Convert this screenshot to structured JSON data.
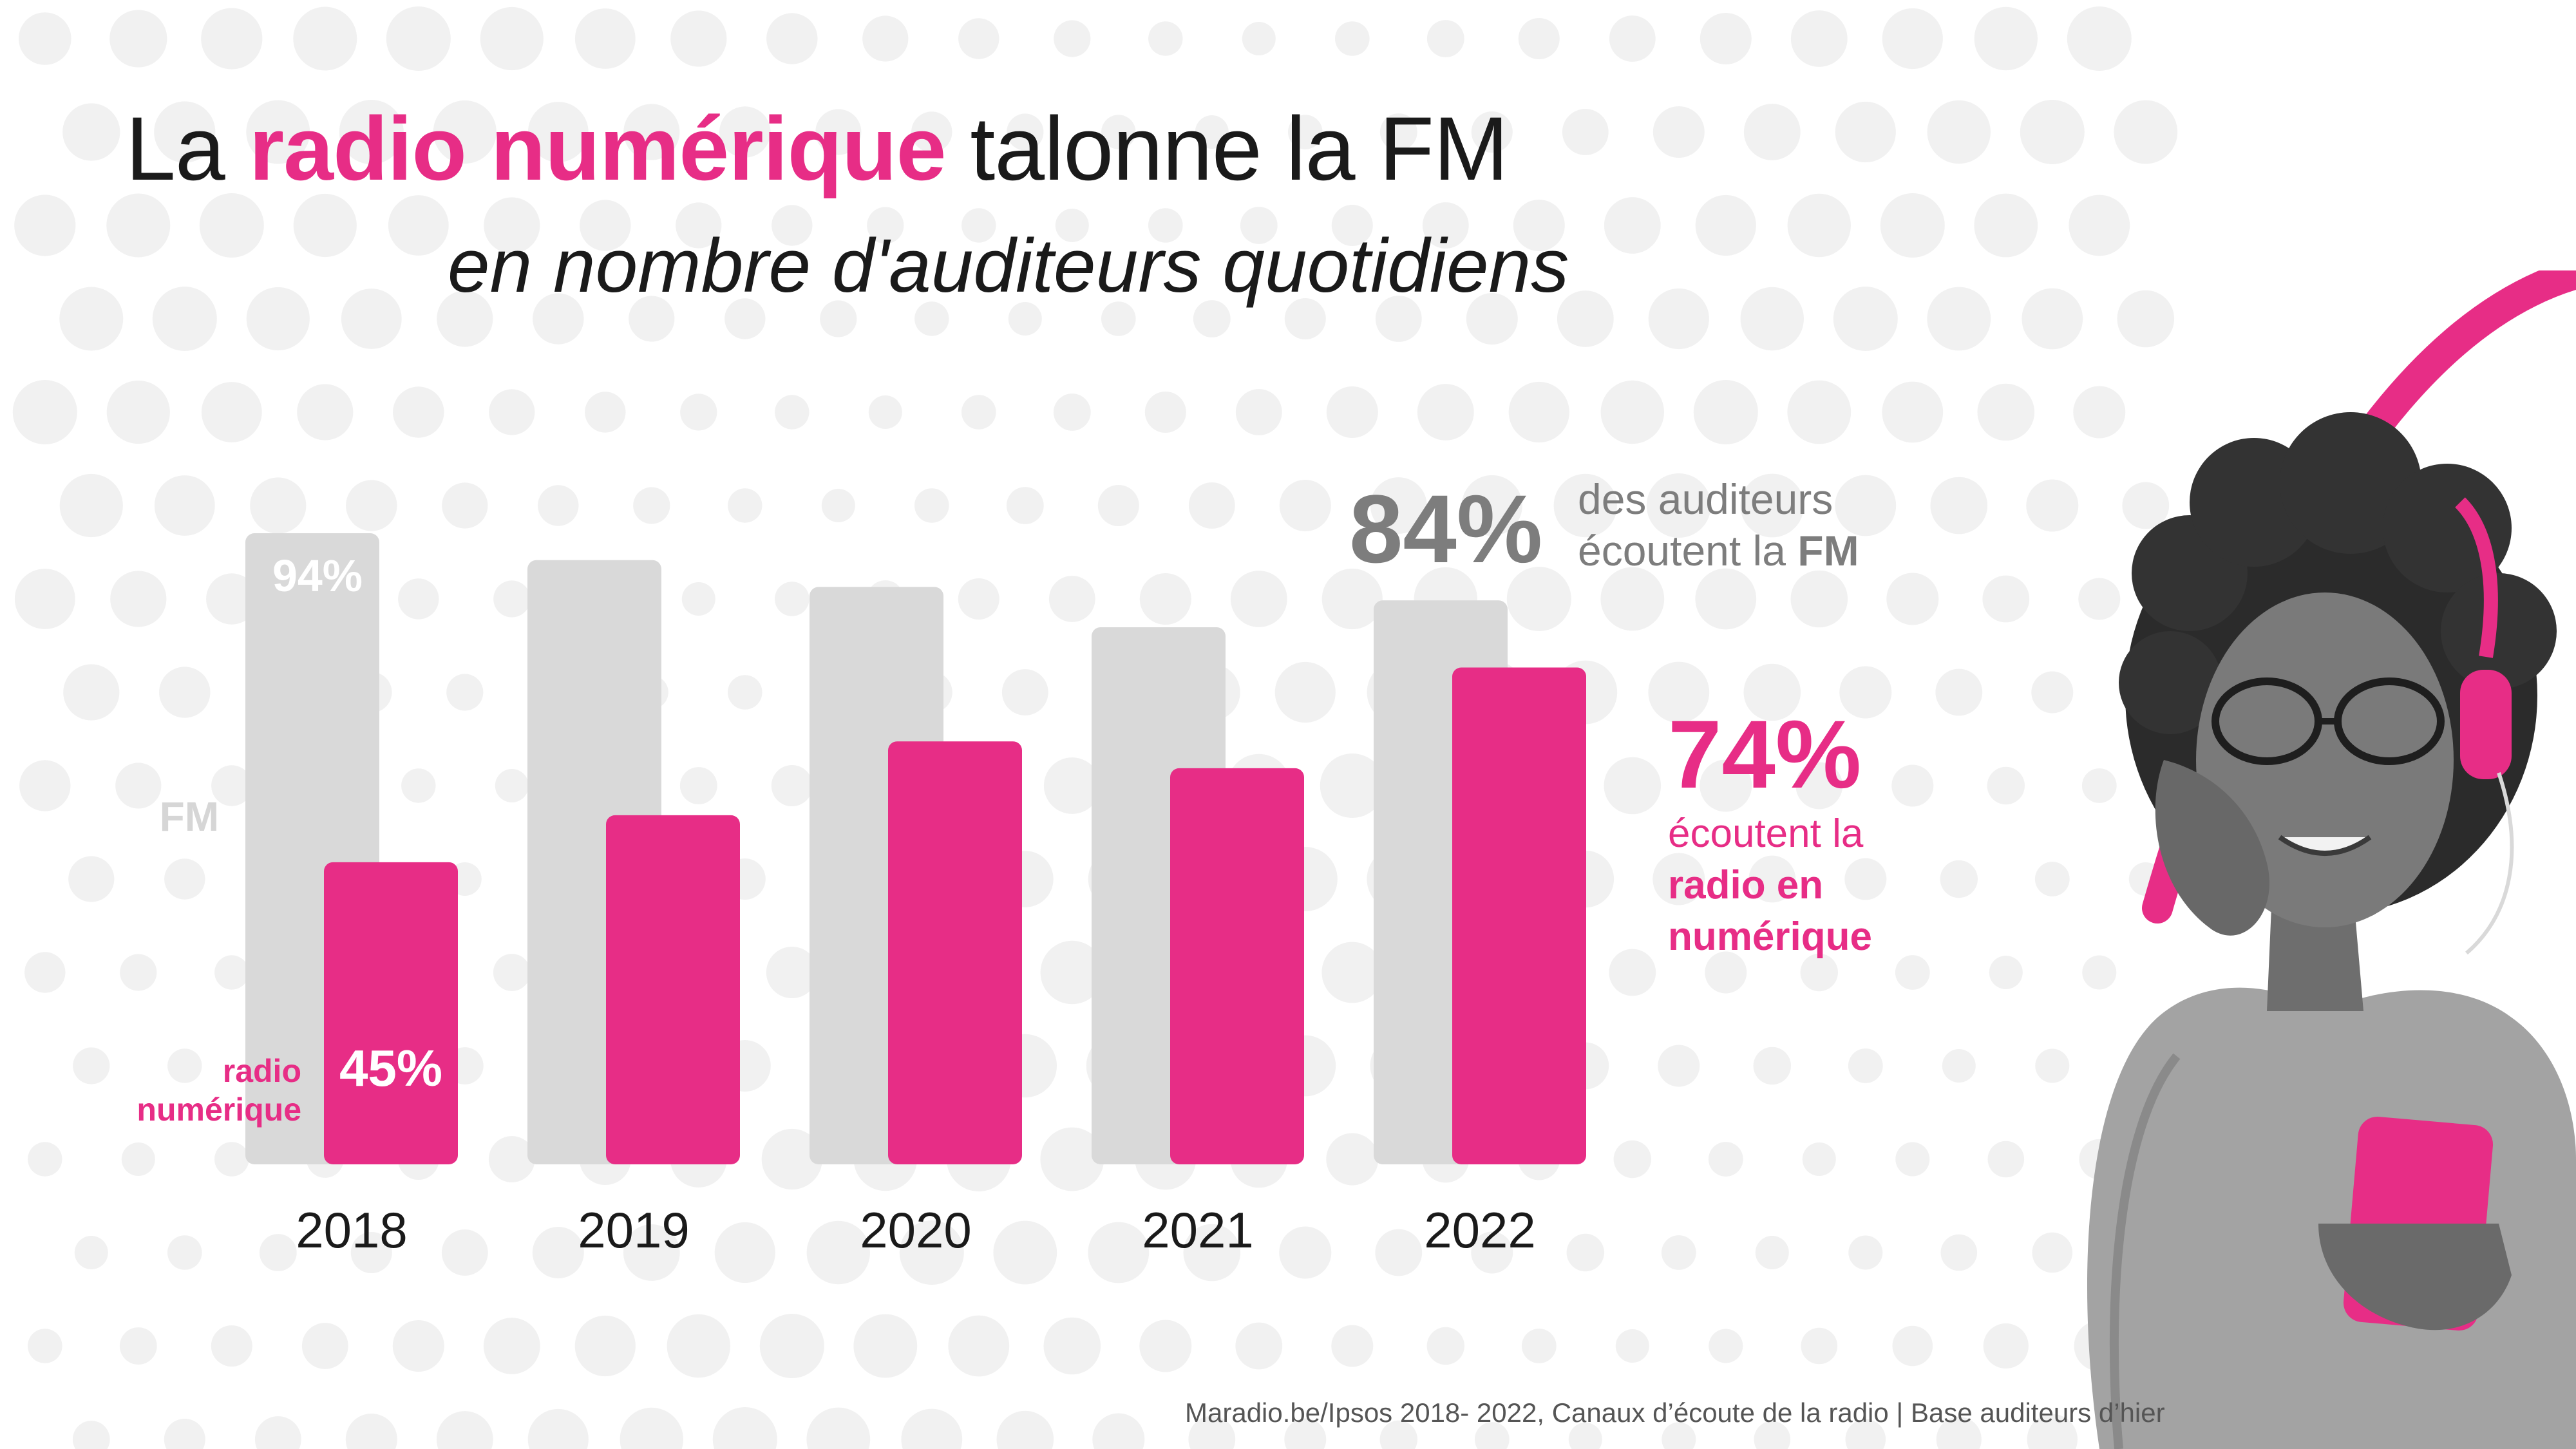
{
  "header": {
    "title_pre": "La",
    "title_accent": "radio numérique",
    "title_post": "talonne la FM",
    "subtitle": "en nombre d'auditeurs quotidiens"
  },
  "callouts": {
    "fm_value": "84%",
    "fm_text_line1": "des auditeurs",
    "fm_text_line2": "écoutent la",
    "fm_text_bold": "FM",
    "digital_value": "74%",
    "digital_text_line1": "écoutent la",
    "digital_text_bold1": "radio en",
    "digital_text_bold2": "numérique"
  },
  "source": "Maradio.be/Ipsos 2018- 2022, Canaux d’écoute de la radio  | Base auditeurs d’hier",
  "colors": {
    "fm": "#d9d9d9",
    "digital": "#e72d86",
    "text": "#1a1a1a",
    "grey_text": "#7d7d7d"
  },
  "chart_data": {
    "type": "bar",
    "categories": [
      "2018",
      "2019",
      "2020",
      "2021",
      "2022"
    ],
    "series": [
      {
        "name": "FM",
        "values": [
          94,
          90,
          86,
          80,
          84
        ]
      },
      {
        "name": "radio numérique",
        "values": [
          45,
          52,
          63,
          59,
          74
        ]
      }
    ],
    "series_labels": {
      "fm": "FM",
      "digital_line1": "radio",
      "digital_line2": "numérique"
    },
    "data_labels": {
      "fm_2018": "94%",
      "digital_2018": "45%"
    },
    "ylim": [
      0,
      94
    ],
    "title": "",
    "xlabel": "",
    "ylabel": ""
  }
}
